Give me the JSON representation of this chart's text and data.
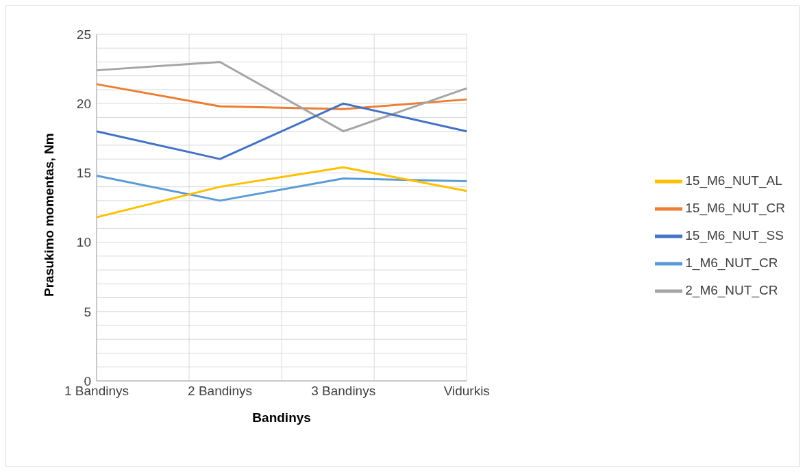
{
  "chart_data": {
    "type": "line",
    "xlabel": "Bandinys",
    "ylabel": "Prasukimo momentas, Nm",
    "categories": [
      "1 Bandinys",
      "2 Bandinys",
      "3 Bandinys",
      "Vidurkis"
    ],
    "series": [
      {
        "name": "1_M6_NUT_CR",
        "color": "#5b9bd5",
        "values": [
          14.8,
          13.0,
          14.6,
          14.4
        ]
      },
      {
        "name": "15_M6_NUT_CR",
        "color": "#ed7d31",
        "values": [
          21.4,
          19.8,
          19.6,
          20.3
        ]
      },
      {
        "name": "2_M6_NUT_CR",
        "color": "#a5a5a5",
        "values": [
          22.4,
          23.0,
          18.0,
          21.1
        ]
      },
      {
        "name": "15_M6_NUT_AL",
        "color": "#ffc000",
        "values": [
          11.8,
          14.0,
          15.4,
          13.7
        ]
      },
      {
        "name": "15_M6_NUT_SS",
        "color": "#4472c4",
        "values": [
          18.0,
          16.0,
          20.0,
          18.0
        ]
      }
    ],
    "ylim": [
      0,
      25
    ],
    "yticks": [
      0,
      5,
      10,
      15,
      20,
      25
    ],
    "grid": true,
    "legend": "right",
    "marker": "none",
    "line_style": "solid"
  }
}
